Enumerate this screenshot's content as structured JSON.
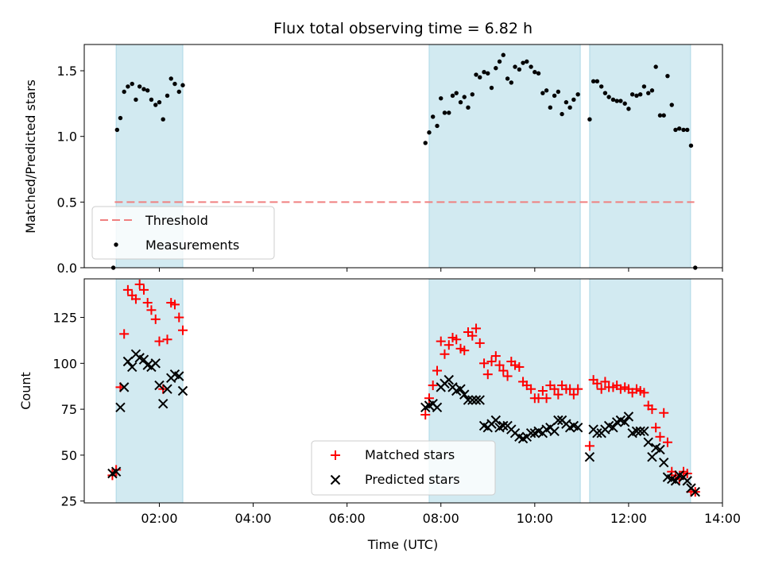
{
  "title": "Flux total observing time = 6.82 h",
  "colors": {
    "shade": "#add8e6",
    "threshold": "#f08080",
    "matched": "#ff0000",
    "predicted": "#000000",
    "measurements": "#000000"
  },
  "chart_data": [
    {
      "type": "scatter",
      "ylabel": "Matched/Predicted stars",
      "ylim": [
        0,
        1.7
      ],
      "yticks": [
        "0.0",
        "0.5",
        "1.0",
        "1.5"
      ],
      "xlim": [
        0.4,
        14.0
      ],
      "legend_position": "lower-left",
      "shaded_ranges": [
        [
          1.08,
          2.5
        ],
        [
          7.75,
          10.97
        ],
        [
          11.17,
          13.32
        ]
      ],
      "threshold": {
        "name": "Threshold",
        "y": 0.5,
        "x_range": [
          1.05,
          13.4
        ]
      },
      "series": [
        {
          "name": "Measurements",
          "x": [
            1.02,
            1.1,
            1.17,
            1.25,
            1.33,
            1.42,
            1.5,
            1.58,
            1.67,
            1.75,
            1.83,
            1.92,
            2.0,
            2.08,
            2.17,
            2.25,
            2.33,
            2.42,
            2.5,
            7.67,
            7.75,
            7.83,
            7.92,
            8.0,
            8.08,
            8.17,
            8.25,
            8.33,
            8.42,
            8.5,
            8.58,
            8.67,
            8.75,
            8.83,
            8.92,
            9.0,
            9.08,
            9.17,
            9.25,
            9.33,
            9.42,
            9.5,
            9.58,
            9.67,
            9.75,
            9.83,
            9.92,
            10.0,
            10.08,
            10.17,
            10.25,
            10.33,
            10.42,
            10.5,
            10.58,
            10.67,
            10.75,
            10.83,
            10.92,
            11.17,
            11.25,
            11.33,
            11.42,
            11.5,
            11.58,
            11.67,
            11.75,
            11.83,
            11.92,
            12.0,
            12.08,
            12.17,
            12.25,
            12.33,
            12.42,
            12.5,
            12.58,
            12.67,
            12.75,
            12.83,
            12.92,
            13.0,
            13.08,
            13.17,
            13.25,
            13.33,
            13.42
          ],
          "y": [
            0.0,
            1.05,
            1.14,
            1.34,
            1.38,
            1.4,
            1.28,
            1.38,
            1.36,
            1.35,
            1.28,
            1.24,
            1.26,
            1.13,
            1.31,
            1.44,
            1.4,
            1.34,
            1.39,
            0.95,
            1.03,
            1.15,
            1.08,
            1.29,
            1.18,
            1.18,
            1.31,
            1.33,
            1.26,
            1.3,
            1.22,
            1.32,
            1.47,
            1.45,
            1.49,
            1.48,
            1.37,
            1.52,
            1.57,
            1.62,
            1.44,
            1.41,
            1.53,
            1.51,
            1.56,
            1.57,
            1.53,
            1.49,
            1.48,
            1.33,
            1.35,
            1.22,
            1.31,
            1.34,
            1.17,
            1.26,
            1.22,
            1.28,
            1.32,
            1.13,
            1.42,
            1.42,
            1.38,
            1.33,
            1.3,
            1.28,
            1.27,
            1.27,
            1.25,
            1.21,
            1.32,
            1.31,
            1.32,
            1.38,
            1.33,
            1.35,
            1.53,
            1.16,
            1.16,
            1.46,
            1.24,
            1.05,
            1.06,
            1.05,
            1.05,
            0.93,
            0.0
          ]
        }
      ]
    },
    {
      "type": "scatter",
      "ylabel": "Count",
      "xlabel": "Time (UTC)",
      "ylim": [
        24,
        146
      ],
      "yticks": [
        "25",
        "50",
        "75",
        "100",
        "125"
      ],
      "xlim": [
        0.4,
        14.0
      ],
      "xticks": [
        {
          "value": 2,
          "label": "02:00"
        },
        {
          "value": 4,
          "label": "04:00"
        },
        {
          "value": 6,
          "label": "06:00"
        },
        {
          "value": 8,
          "label": "08:00"
        },
        {
          "value": 10,
          "label": "10:00"
        },
        {
          "value": 12,
          "label": "12:00"
        },
        {
          "value": 14,
          "label": "14:00"
        }
      ],
      "legend_position": "lower-center",
      "shaded_ranges": [
        [
          1.08,
          2.5
        ],
        [
          7.75,
          10.97
        ],
        [
          11.17,
          13.32
        ]
      ],
      "series": [
        {
          "name": "Matched stars",
          "marker": "plus",
          "x": [
            1.0,
            1.08,
            1.17,
            1.25,
            1.33,
            1.42,
            1.5,
            1.58,
            1.67,
            1.75,
            1.83,
            1.92,
            2.0,
            2.08,
            2.17,
            2.25,
            2.33,
            2.42,
            2.5,
            7.67,
            7.75,
            7.83,
            7.92,
            8.0,
            8.08,
            8.17,
            8.25,
            8.33,
            8.42,
            8.5,
            8.58,
            8.67,
            8.75,
            8.83,
            8.92,
            9.0,
            9.08,
            9.17,
            9.25,
            9.33,
            9.42,
            9.5,
            9.58,
            9.67,
            9.75,
            9.83,
            9.92,
            10.0,
            10.08,
            10.17,
            10.25,
            10.33,
            10.42,
            10.5,
            10.58,
            10.67,
            10.75,
            10.83,
            10.92,
            11.17,
            11.25,
            11.33,
            11.42,
            11.5,
            11.58,
            11.67,
            11.75,
            11.83,
            11.92,
            12.0,
            12.08,
            12.17,
            12.25,
            12.33,
            12.42,
            12.5,
            12.58,
            12.67,
            12.75,
            12.83,
            12.92,
            13.0,
            13.08,
            13.17,
            13.25,
            13.33,
            13.42
          ],
          "y": [
            39,
            42,
            87,
            116,
            140,
            137,
            135,
            143,
            140,
            133,
            129,
            124,
            112,
            86,
            113,
            133,
            132,
            125,
            118,
            72,
            81,
            88,
            96,
            112,
            105,
            110,
            114,
            113,
            108,
            107,
            117,
            115,
            119,
            111,
            100,
            94,
            101,
            104,
            99,
            96,
            93,
            101,
            99,
            98,
            90,
            88,
            86,
            81,
            81,
            85,
            81,
            88,
            86,
            83,
            88,
            86,
            86,
            83,
            86,
            55,
            91,
            89,
            86,
            90,
            87,
            87,
            88,
            86,
            87,
            86,
            84,
            86,
            85,
            84,
            77,
            75,
            65,
            60,
            73,
            57,
            41,
            39,
            37,
            41,
            40,
            30,
            30
          ]
        },
        {
          "name": "Predicted stars",
          "marker": "x",
          "x": [
            1.0,
            1.08,
            1.17,
            1.25,
            1.33,
            1.42,
            1.5,
            1.58,
            1.67,
            1.75,
            1.83,
            1.92,
            2.0,
            2.08,
            2.17,
            2.25,
            2.33,
            2.42,
            2.5,
            7.67,
            7.75,
            7.83,
            7.92,
            8.0,
            8.08,
            8.17,
            8.25,
            8.33,
            8.42,
            8.5,
            8.58,
            8.67,
            8.75,
            8.83,
            8.92,
            9.0,
            9.08,
            9.17,
            9.25,
            9.33,
            9.42,
            9.5,
            9.58,
            9.67,
            9.75,
            9.83,
            9.92,
            10.0,
            10.08,
            10.17,
            10.25,
            10.33,
            10.42,
            10.5,
            10.58,
            10.67,
            10.75,
            10.83,
            10.92,
            11.17,
            11.25,
            11.33,
            11.42,
            11.5,
            11.58,
            11.67,
            11.75,
            11.83,
            11.92,
            12.0,
            12.08,
            12.17,
            12.25,
            12.33,
            12.42,
            12.5,
            12.58,
            12.67,
            12.75,
            12.83,
            12.92,
            13.0,
            13.08,
            13.17,
            13.25,
            13.33,
            13.42
          ],
          "y": [
            40,
            41,
            76,
            87,
            101,
            98,
            105,
            103,
            102,
            99,
            98,
            100,
            88,
            78,
            86,
            92,
            94,
            93,
            85,
            76,
            77,
            78,
            76,
            87,
            89,
            91,
            87,
            85,
            86,
            83,
            80,
            80,
            80,
            80,
            66,
            65,
            67,
            69,
            65,
            66,
            66,
            64,
            62,
            60,
            59,
            60,
            62,
            62,
            63,
            62,
            64,
            65,
            63,
            69,
            69,
            67,
            65,
            66,
            65,
            49,
            64,
            62,
            62,
            64,
            66,
            65,
            68,
            69,
            68,
            71,
            62,
            63,
            63,
            63,
            57,
            49,
            54,
            53,
            46,
            38,
            37,
            36,
            39,
            38,
            36,
            32,
            30
          ]
        }
      ]
    }
  ]
}
